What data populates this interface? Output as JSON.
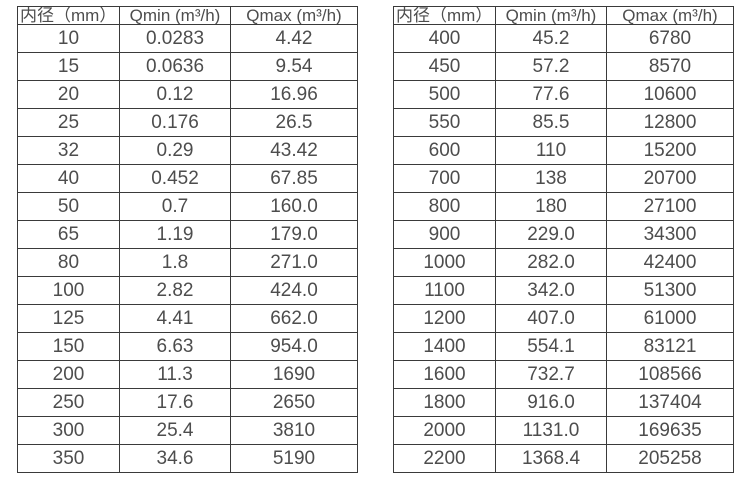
{
  "colors": {
    "background": "#ffffff",
    "border": "#3a3a3a",
    "text": "#4d4d4d"
  },
  "tables": [
    {
      "name": "flow-range-table-small-diameters",
      "headers": [
        "内径（mm）",
        "Qmin (m³/h)",
        "Qmax (m³/h)"
      ],
      "rows": [
        [
          "10",
          "0.0283",
          "4.42"
        ],
        [
          "15",
          "0.0636",
          "9.54"
        ],
        [
          "20",
          "0.12",
          "16.96"
        ],
        [
          "25",
          "0.176",
          "26.5"
        ],
        [
          "32",
          "0.29",
          "43.42"
        ],
        [
          "40",
          "0.452",
          "67.85"
        ],
        [
          "50",
          "0.7",
          "160.0"
        ],
        [
          "65",
          "1.19",
          "179.0"
        ],
        [
          "80",
          "1.8",
          "271.0"
        ],
        [
          "100",
          "2.82",
          "424.0"
        ],
        [
          "125",
          "4.41",
          "662.0"
        ],
        [
          "150",
          "6.63",
          "954.0"
        ],
        [
          "200",
          "11.3",
          "1690"
        ],
        [
          "250",
          "17.6",
          "2650"
        ],
        [
          "300",
          "25.4",
          "3810"
        ],
        [
          "350",
          "34.6",
          "5190"
        ]
      ]
    },
    {
      "name": "flow-range-table-large-diameters",
      "headers": [
        "内径（mm）",
        "Qmin (m³/h)",
        "Qmax (m³/h)"
      ],
      "rows": [
        [
          "400",
          "45.2",
          "6780"
        ],
        [
          "450",
          "57.2",
          "8570"
        ],
        [
          "500",
          "77.6",
          "10600"
        ],
        [
          "550",
          "85.5",
          "12800"
        ],
        [
          "600",
          "110",
          "15200"
        ],
        [
          "700",
          "138",
          "20700"
        ],
        [
          "800",
          "180",
          "27100"
        ],
        [
          "900",
          "229.0",
          "34300"
        ],
        [
          "1000",
          "282.0",
          "42400"
        ],
        [
          "1100",
          "342.0",
          "51300"
        ],
        [
          "1200",
          "407.0",
          "61000"
        ],
        [
          "1400",
          "554.1",
          "83121"
        ],
        [
          "1600",
          "732.7",
          "108566"
        ],
        [
          "1800",
          "916.0",
          "137404"
        ],
        [
          "2000",
          "1131.0",
          "169635"
        ],
        [
          "2200",
          "1368.4",
          "205258"
        ]
      ]
    }
  ]
}
